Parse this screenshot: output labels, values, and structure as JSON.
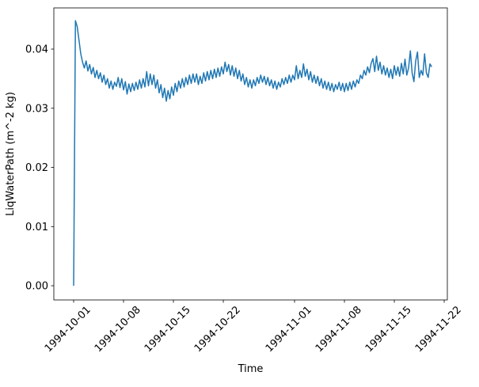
{
  "chart_data": {
    "type": "line",
    "title": "",
    "xlabel": "Time",
    "ylabel": "LiqWaterPath (m^-2 kg)",
    "grid": false,
    "legend": null,
    "background_color": "#ffffff",
    "axis_color": "#000000",
    "x_axis": {
      "unit": "date",
      "epoch": "days since 1994-10-01",
      "lim": [
        -2.78,
        52.44
      ],
      "tick_positions": [
        0,
        7,
        14,
        21,
        31,
        38,
        45,
        52
      ],
      "tick_labels": [
        "1994-10-01",
        "1994-10-08",
        "1994-10-15",
        "1994-10-22",
        "1994-11-01",
        "1994-11-08",
        "1994-11-15",
        "1994-11-22"
      ],
      "tick_rotation_deg": 45
    },
    "y_axis": {
      "lim": [
        -0.0024,
        0.04696
      ],
      "tick_values": [
        0.0,
        0.01,
        0.02,
        0.03,
        0.04
      ],
      "tick_labels": [
        "0.00",
        "0.01",
        "0.02",
        "0.03",
        "0.04"
      ]
    },
    "series": [
      {
        "name": "LiqWaterPath",
        "color": "#1f77b4",
        "line_width": 1.5,
        "points": [
          [
            0,
            0.0
          ],
          [
            0.25,
            0.0448
          ],
          [
            0.5,
            0.0438
          ],
          [
            0.75,
            0.0415
          ],
          [
            1,
            0.0392
          ],
          [
            1.25,
            0.0378
          ],
          [
            1.5,
            0.0368
          ],
          [
            1.75,
            0.038
          ],
          [
            2,
            0.0363
          ],
          [
            2.25,
            0.0374
          ],
          [
            2.5,
            0.0358
          ],
          [
            2.75,
            0.0369
          ],
          [
            3,
            0.0352
          ],
          [
            3.25,
            0.0364
          ],
          [
            3.5,
            0.035
          ],
          [
            3.75,
            0.036
          ],
          [
            4,
            0.0344
          ],
          [
            4.25,
            0.0356
          ],
          [
            4.5,
            0.034
          ],
          [
            4.75,
            0.035
          ],
          [
            5,
            0.0334
          ],
          [
            5.25,
            0.0346
          ],
          [
            5.5,
            0.0332
          ],
          [
            5.75,
            0.0344
          ],
          [
            6,
            0.0337
          ],
          [
            6.25,
            0.0352
          ],
          [
            6.5,
            0.0335
          ],
          [
            6.75,
            0.035
          ],
          [
            7,
            0.0331
          ],
          [
            7.25,
            0.0345
          ],
          [
            7.5,
            0.0324
          ],
          [
            7.75,
            0.0341
          ],
          [
            8,
            0.0328
          ],
          [
            8.25,
            0.0342
          ],
          [
            8.5,
            0.033
          ],
          [
            8.75,
            0.0344
          ],
          [
            9,
            0.0332
          ],
          [
            9.25,
            0.0348
          ],
          [
            9.5,
            0.0334
          ],
          [
            9.75,
            0.035
          ],
          [
            10,
            0.0336
          ],
          [
            10.25,
            0.0362
          ],
          [
            10.5,
            0.0338
          ],
          [
            10.75,
            0.0358
          ],
          [
            11,
            0.034
          ],
          [
            11.25,
            0.0356
          ],
          [
            11.5,
            0.0334
          ],
          [
            11.75,
            0.0348
          ],
          [
            12,
            0.0326
          ],
          [
            12.25,
            0.034
          ],
          [
            12.5,
            0.0318
          ],
          [
            12.75,
            0.0334
          ],
          [
            13,
            0.0312
          ],
          [
            13.25,
            0.033
          ],
          [
            13.5,
            0.0316
          ],
          [
            13.75,
            0.0336
          ],
          [
            14,
            0.0322
          ],
          [
            14.25,
            0.0342
          ],
          [
            14.5,
            0.0328
          ],
          [
            14.75,
            0.0346
          ],
          [
            15,
            0.0334
          ],
          [
            15.25,
            0.035
          ],
          [
            15.5,
            0.0336
          ],
          [
            15.75,
            0.0352
          ],
          [
            16,
            0.034
          ],
          [
            16.25,
            0.0356
          ],
          [
            16.5,
            0.0342
          ],
          [
            16.75,
            0.0358
          ],
          [
            17,
            0.0344
          ],
          [
            17.25,
            0.0358
          ],
          [
            17.5,
            0.034
          ],
          [
            17.75,
            0.0354
          ],
          [
            18,
            0.0342
          ],
          [
            18.25,
            0.036
          ],
          [
            18.5,
            0.0346
          ],
          [
            18.75,
            0.0362
          ],
          [
            19,
            0.0348
          ],
          [
            19.25,
            0.0364
          ],
          [
            19.5,
            0.035
          ],
          [
            19.75,
            0.0366
          ],
          [
            20,
            0.0352
          ],
          [
            20.25,
            0.0368
          ],
          [
            20.5,
            0.0354
          ],
          [
            20.75,
            0.037
          ],
          [
            21,
            0.0358
          ],
          [
            21.25,
            0.0378
          ],
          [
            21.5,
            0.0362
          ],
          [
            21.75,
            0.0374
          ],
          [
            22,
            0.0356
          ],
          [
            22.25,
            0.0372
          ],
          [
            22.5,
            0.0354
          ],
          [
            22.75,
            0.0368
          ],
          [
            23,
            0.035
          ],
          [
            23.25,
            0.0364
          ],
          [
            23.5,
            0.0346
          ],
          [
            23.75,
            0.0358
          ],
          [
            24,
            0.034
          ],
          [
            24.25,
            0.0352
          ],
          [
            24.5,
            0.0336
          ],
          [
            24.75,
            0.0348
          ],
          [
            25,
            0.0334
          ],
          [
            25.25,
            0.0348
          ],
          [
            25.5,
            0.0338
          ],
          [
            25.75,
            0.0352
          ],
          [
            26,
            0.0342
          ],
          [
            26.25,
            0.0356
          ],
          [
            26.5,
            0.0344
          ],
          [
            26.75,
            0.0354
          ],
          [
            27,
            0.034
          ],
          [
            27.25,
            0.0352
          ],
          [
            27.5,
            0.0338
          ],
          [
            27.75,
            0.0348
          ],
          [
            28,
            0.0334
          ],
          [
            28.25,
            0.0346
          ],
          [
            28.5,
            0.0332
          ],
          [
            28.75,
            0.0344
          ],
          [
            29,
            0.0336
          ],
          [
            29.25,
            0.035
          ],
          [
            29.5,
            0.034
          ],
          [
            29.75,
            0.0352
          ],
          [
            30,
            0.0342
          ],
          [
            30.25,
            0.0356
          ],
          [
            30.5,
            0.0344
          ],
          [
            30.75,
            0.0356
          ],
          [
            31,
            0.0348
          ],
          [
            31.25,
            0.0372
          ],
          [
            31.5,
            0.035
          ],
          [
            31.75,
            0.0364
          ],
          [
            32,
            0.0352
          ],
          [
            32.25,
            0.0375
          ],
          [
            32.5,
            0.0354
          ],
          [
            32.75,
            0.0366
          ],
          [
            33,
            0.0348
          ],
          [
            33.25,
            0.0362
          ],
          [
            33.5,
            0.0344
          ],
          [
            33.75,
            0.0356
          ],
          [
            34,
            0.0342
          ],
          [
            34.25,
            0.0354
          ],
          [
            34.5,
            0.0338
          ],
          [
            34.75,
            0.035
          ],
          [
            35,
            0.0334
          ],
          [
            35.25,
            0.0346
          ],
          [
            35.5,
            0.0332
          ],
          [
            35.75,
            0.0344
          ],
          [
            36,
            0.033
          ],
          [
            36.25,
            0.0342
          ],
          [
            36.5,
            0.0328
          ],
          [
            36.75,
            0.034
          ],
          [
            37,
            0.0332
          ],
          [
            37.25,
            0.0344
          ],
          [
            37.5,
            0.033
          ],
          [
            37.75,
            0.0342
          ],
          [
            38,
            0.0328
          ],
          [
            38.25,
            0.0342
          ],
          [
            38.5,
            0.033
          ],
          [
            38.75,
            0.0344
          ],
          [
            39,
            0.0332
          ],
          [
            39.25,
            0.0346
          ],
          [
            39.5,
            0.0336
          ],
          [
            39.75,
            0.0348
          ],
          [
            40,
            0.0342
          ],
          [
            40.25,
            0.0356
          ],
          [
            40.5,
            0.035
          ],
          [
            40.75,
            0.0364
          ],
          [
            41,
            0.0356
          ],
          [
            41.25,
            0.037
          ],
          [
            41.5,
            0.036
          ],
          [
            41.75,
            0.0376
          ],
          [
            42,
            0.0384
          ],
          [
            42.25,
            0.0362
          ],
          [
            42.5,
            0.0388
          ],
          [
            42.75,
            0.0364
          ],
          [
            43,
            0.0378
          ],
          [
            43.25,
            0.0358
          ],
          [
            43.5,
            0.0372
          ],
          [
            43.75,
            0.0356
          ],
          [
            44,
            0.0368
          ],
          [
            44.25,
            0.0352
          ],
          [
            44.5,
            0.0366
          ],
          [
            44.75,
            0.035
          ],
          [
            45,
            0.0372
          ],
          [
            45.25,
            0.0356
          ],
          [
            45.5,
            0.037
          ],
          [
            45.75,
            0.0354
          ],
          [
            46,
            0.0376
          ],
          [
            46.25,
            0.0358
          ],
          [
            46.5,
            0.0383
          ],
          [
            46.75,
            0.0356
          ],
          [
            47,
            0.0368
          ],
          [
            47.25,
            0.0397
          ],
          [
            47.5,
            0.036
          ],
          [
            47.75,
            0.0345
          ],
          [
            48,
            0.038
          ],
          [
            48.25,
            0.0395
          ],
          [
            48.5,
            0.0352
          ],
          [
            48.75,
            0.0364
          ],
          [
            49,
            0.0356
          ],
          [
            49.25,
            0.0392
          ],
          [
            49.5,
            0.036
          ],
          [
            49.75,
            0.0352
          ],
          [
            50,
            0.0375
          ],
          [
            50.25,
            0.037
          ]
        ]
      }
    ]
  }
}
